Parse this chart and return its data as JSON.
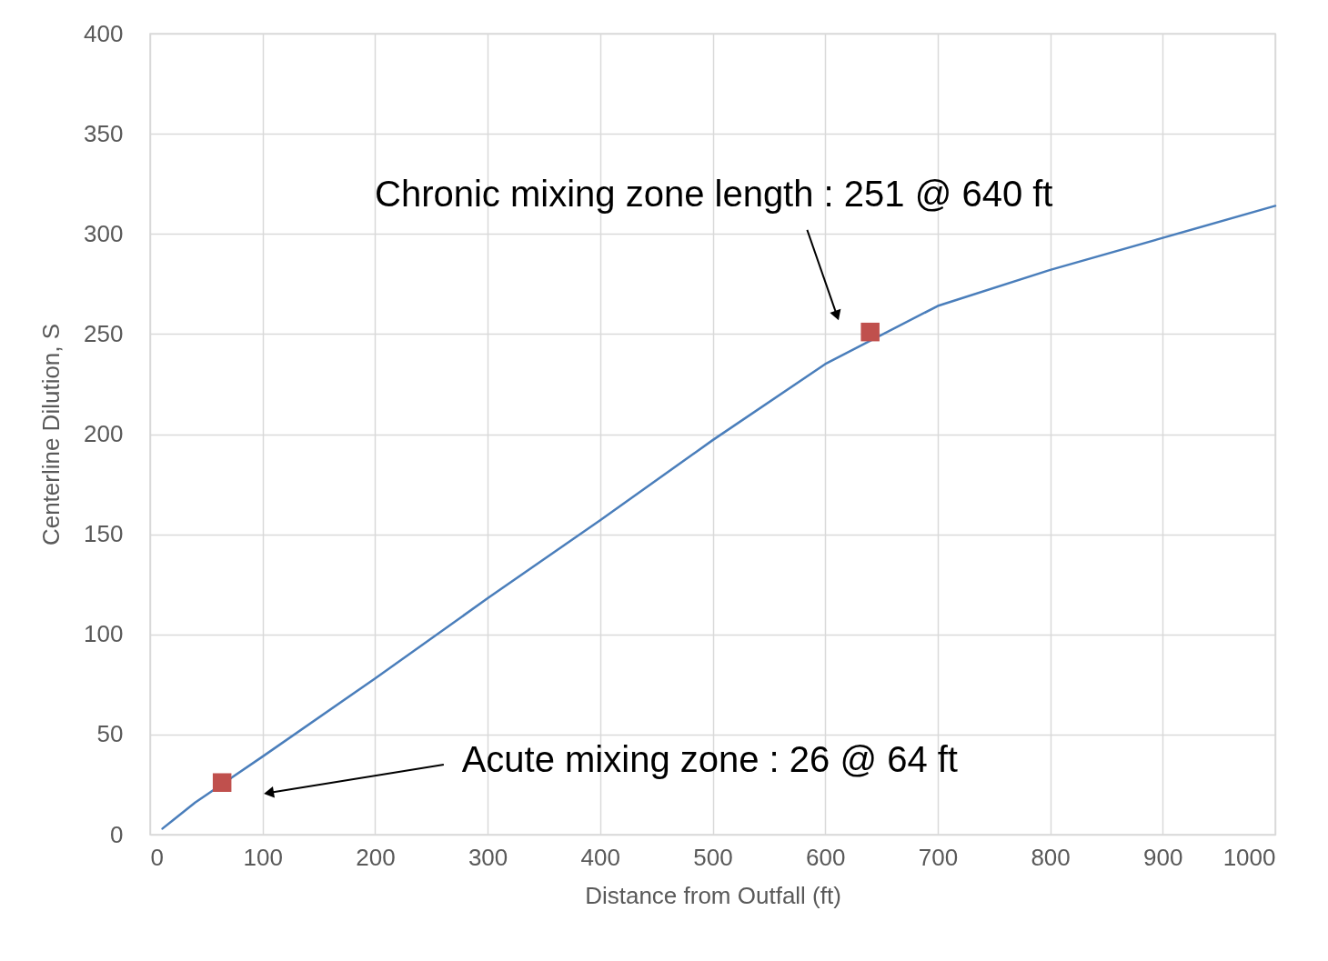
{
  "chart_data": {
    "type": "line",
    "xlabel": "Distance from Outfall (ft)",
    "ylabel": "Centerline Dilution, S",
    "series": [
      {
        "type": "line",
        "color": "#4a7ebb",
        "marker": "none",
        "x": [
          11,
          20,
          40,
          100,
          200,
          300,
          400,
          500,
          600,
          700,
          800,
          900,
          1000
        ],
        "values": [
          3,
          7,
          16,
          39,
          78,
          118,
          157,
          197,
          235,
          264,
          282,
          298,
          314
        ]
      },
      {
        "type": "scatter",
        "color": "#c0504d",
        "marker": "square",
        "x": [
          64,
          640
        ],
        "values": [
          26,
          251
        ]
      }
    ],
    "annotations": [
      "Acute mixing zone : 26 @ 64 ft",
      "Chronic mixing zone length : 251 @ 640 ft"
    ],
    "xlim": [
      0,
      1000
    ],
    "xticks": [
      0,
      100,
      200,
      300,
      400,
      500,
      600,
      700,
      800,
      900,
      1000
    ],
    "ylim": [
      0,
      400
    ],
    "yticks": [
      0,
      50,
      100,
      150,
      200,
      250,
      300,
      350,
      400
    ],
    "grid": true
  }
}
